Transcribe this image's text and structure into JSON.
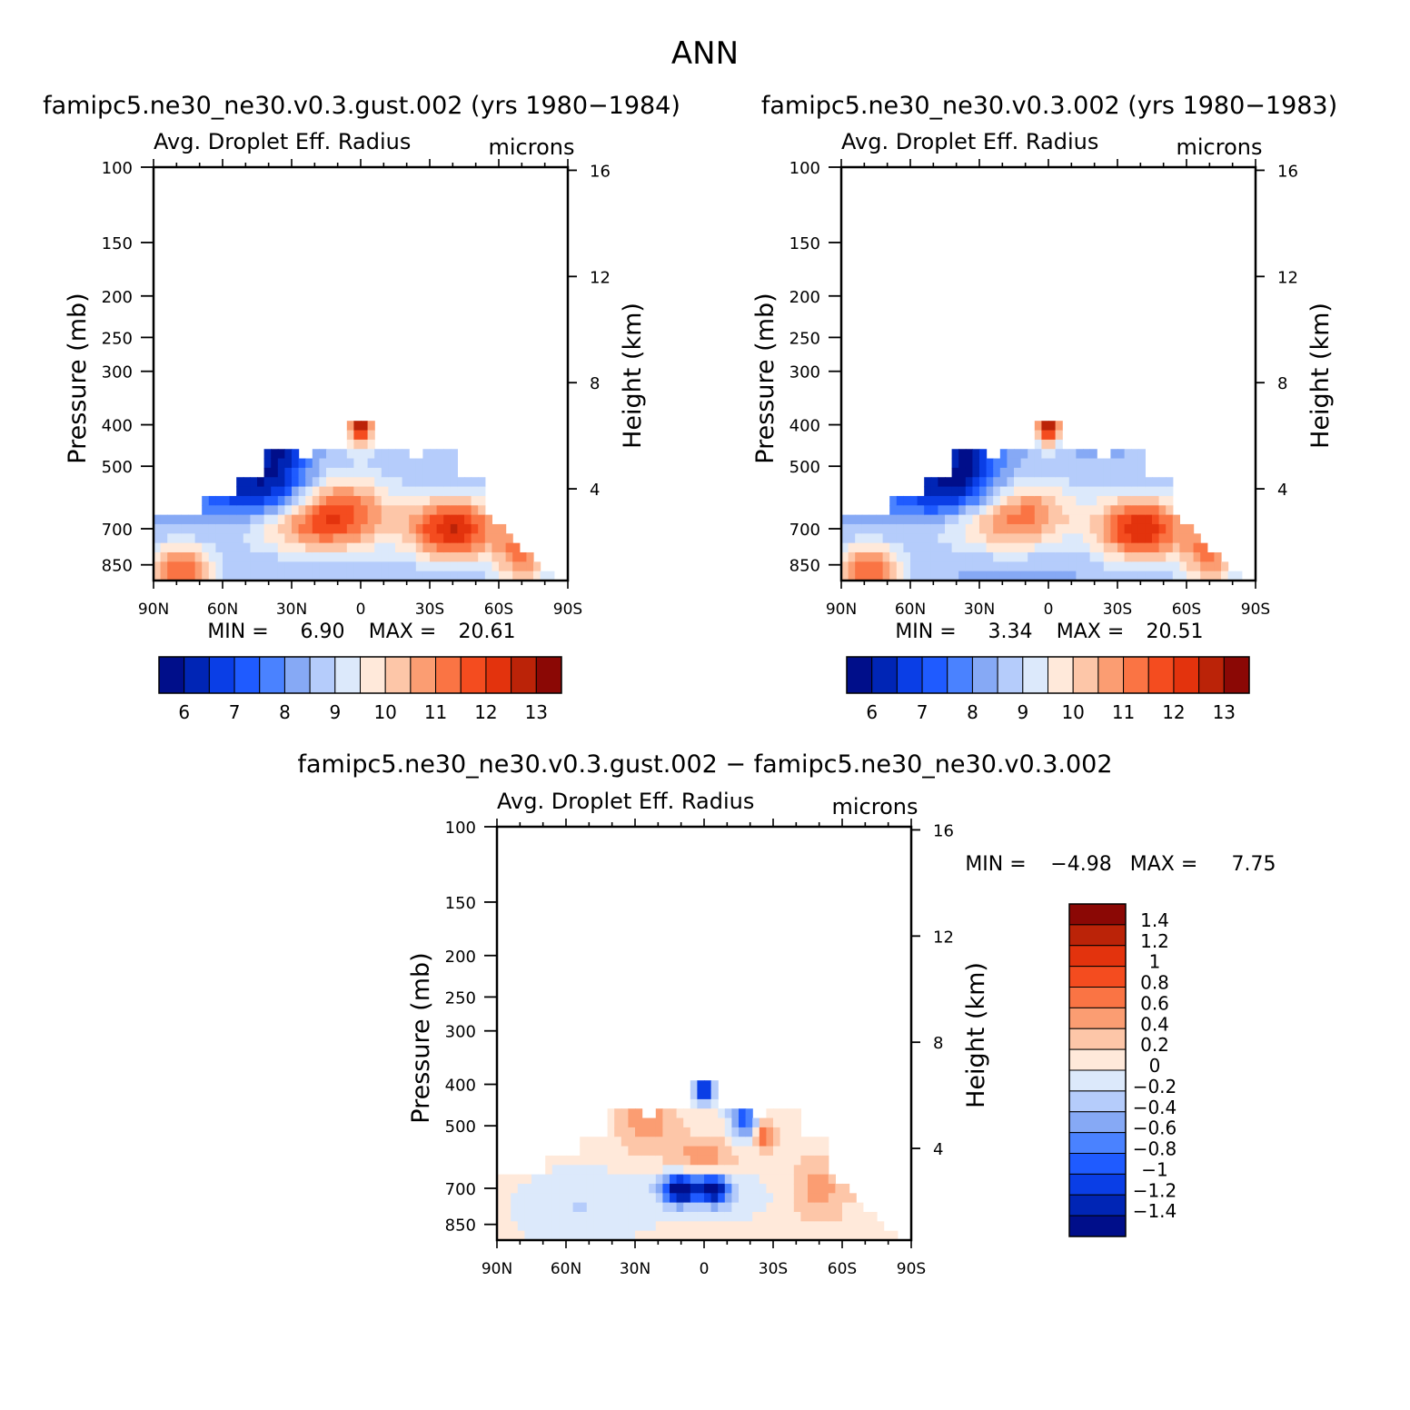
{
  "page": {
    "title": "ANN"
  },
  "colors": {
    "abs_palette": [
      "#000e8a",
      "#0025b5",
      "#0a3ee6",
      "#1f5bff",
      "#4a82ff",
      "#86a9f5",
      "#b5ccfb",
      "#dce9fb",
      "#ffe9da",
      "#fdc6a8",
      "#fb9d72",
      "#fa7444",
      "#f44c1f",
      "#e3330d",
      "#bb2308",
      "#8b0805"
    ],
    "diff_palette": [
      "#000e8a",
      "#0025b5",
      "#0a3ee6",
      "#1f5bff",
      "#4a82ff",
      "#86a9f5",
      "#b5ccfb",
      "#dce9fb",
      "#ffe9da",
      "#fdc6a8",
      "#fb9d72",
      "#fa7444",
      "#f44c1f",
      "#e3330d",
      "#bb2308",
      "#8b0805"
    ]
  },
  "chart_data": [
    {
      "type": "heatmap",
      "title": "famipc5.ne30_ne30.v0.3.gust.002 (yrs 1980−1984)",
      "variable": "Avg. Droplet Eff. Radius",
      "units": "microns",
      "xlabel": "",
      "ylabel": "Pressure (mb)",
      "y2label": "Height (km)",
      "x_ticks": [
        "90N",
        "60N",
        "30N",
        "0",
        "30S",
        "60S",
        "90S"
      ],
      "y_ticks": [
        100,
        150,
        200,
        250,
        300,
        400,
        500,
        700,
        850
      ],
      "y2_ticks": [
        16,
        12,
        8,
        4
      ],
      "ylim": [
        1000,
        100
      ],
      "y_scale": "log",
      "min_label": "MIN =",
      "min_value": "6.90",
      "max_label": "MAX =",
      "max_value": "20.61",
      "colorbar_labels": [
        "6",
        "7",
        "8",
        "9",
        "10",
        "11",
        "12",
        "13"
      ],
      "levels": [
        5.5,
        6,
        6.5,
        7,
        7.5,
        8,
        8.5,
        9,
        9.5,
        10,
        10.5,
        11,
        11.5,
        12,
        12.5,
        13,
        13.5
      ]
    },
    {
      "type": "heatmap",
      "title": "famipc5.ne30_ne30.v0.3.002 (yrs 1980−1983)",
      "variable": "Avg. Droplet Eff. Radius",
      "units": "microns",
      "xlabel": "",
      "ylabel": "Pressure (mb)",
      "y2label": "Height (km)",
      "x_ticks": [
        "90N",
        "60N",
        "30N",
        "0",
        "30S",
        "60S",
        "90S"
      ],
      "y_ticks": [
        100,
        150,
        200,
        250,
        300,
        400,
        500,
        700,
        850
      ],
      "y2_ticks": [
        16,
        12,
        8,
        4
      ],
      "ylim": [
        1000,
        100
      ],
      "y_scale": "log",
      "min_label": "MIN =",
      "min_value": "3.34",
      "max_label": "MAX =",
      "max_value": "20.51",
      "colorbar_labels": [
        "6",
        "7",
        "8",
        "9",
        "10",
        "11",
        "12",
        "13"
      ],
      "levels": [
        5.5,
        6,
        6.5,
        7,
        7.5,
        8,
        8.5,
        9,
        9.5,
        10,
        10.5,
        11,
        11.5,
        12,
        12.5,
        13,
        13.5
      ]
    },
    {
      "type": "heatmap",
      "title": "famipc5.ne30_ne30.v0.3.gust.002 − famipc5.ne30_ne30.v0.3.002",
      "variable": "Avg. Droplet Eff. Radius",
      "units": "microns",
      "xlabel": "",
      "ylabel": "Pressure (mb)",
      "y2label": "Height (km)",
      "x_ticks": [
        "90N",
        "60N",
        "30N",
        "0",
        "30S",
        "60S",
        "90S"
      ],
      "y_ticks": [
        100,
        150,
        200,
        250,
        300,
        400,
        500,
        700,
        850
      ],
      "y2_ticks": [
        16,
        12,
        8,
        4
      ],
      "ylim": [
        1000,
        100
      ],
      "y_scale": "log",
      "min_label": "MIN =",
      "min_value": "−4.98",
      "max_label": "MAX =",
      "max_value": "7.75",
      "colorbar_labels": [
        "1.4",
        "1.2",
        "1",
        "0.8",
        "0.6",
        "0.4",
        "0.2",
        "0",
        "−0.2",
        "−0.4",
        "−0.6",
        "−0.8",
        "−1",
        "−1.2",
        "−1.4"
      ],
      "levels": [
        -1.6,
        -1.4,
        -1.2,
        -1,
        -0.8,
        -0.6,
        -0.4,
        -0.2,
        0,
        0.2,
        0.4,
        0.6,
        0.8,
        1,
        1.2,
        1.4,
        1.6
      ]
    }
  ]
}
